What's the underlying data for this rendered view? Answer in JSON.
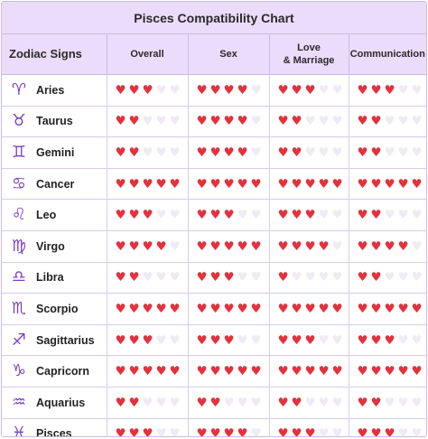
{
  "title": "Pisces Compatibility Chart",
  "headers": {
    "sign": "Zodiac Signs",
    "overall": "Overall",
    "sex": "Sex",
    "love_line1": "Love",
    "love_line2": "& Marriage",
    "communication": "Communication"
  },
  "colors": {
    "accent": "#7b3fbf",
    "heart_on": "#e3323d",
    "heart_off": "#f0eaf5",
    "header_bg": "#ecdcfb"
  },
  "max_hearts": 5,
  "rows": [
    {
      "glyph": "♈",
      "icon": "aries-icon",
      "name": "Aries",
      "ratings": [
        3,
        4,
        3,
        3
      ]
    },
    {
      "glyph": "♉",
      "icon": "taurus-icon",
      "name": "Taurus",
      "ratings": [
        2,
        4,
        2,
        2
      ]
    },
    {
      "glyph": "♊",
      "icon": "gemini-icon",
      "name": "Gemini",
      "ratings": [
        2,
        4,
        2,
        2
      ]
    },
    {
      "glyph": "♋",
      "icon": "cancer-icon",
      "name": "Cancer",
      "ratings": [
        5,
        5,
        5,
        5
      ]
    },
    {
      "glyph": "♌",
      "icon": "leo-icon",
      "name": "Leo",
      "ratings": [
        3,
        3,
        3,
        2
      ]
    },
    {
      "glyph": "♍",
      "icon": "virgo-icon",
      "name": "Virgo",
      "ratings": [
        4,
        5,
        4,
        4
      ]
    },
    {
      "glyph": "♎",
      "icon": "libra-icon",
      "name": "Libra",
      "ratings": [
        2,
        3,
        1,
        2
      ]
    },
    {
      "glyph": "♏",
      "icon": "scorpio-icon",
      "name": "Scorpio",
      "ratings": [
        5,
        5,
        5,
        5
      ]
    },
    {
      "glyph": "♐",
      "icon": "sagittarius-icon",
      "name": "Sagittarius",
      "ratings": [
        3,
        3,
        3,
        3
      ]
    },
    {
      "glyph": "♑",
      "icon": "capricorn-icon",
      "name": "Capricorn",
      "ratings": [
        5,
        5,
        5,
        5
      ]
    },
    {
      "glyph": "♒",
      "icon": "aquarius-icon",
      "name": "Aquarius",
      "ratings": [
        2,
        2,
        2,
        2
      ]
    },
    {
      "glyph": "♓",
      "icon": "pisces-icon",
      "name": "Pisces",
      "ratings": [
        3,
        4,
        3,
        3
      ]
    }
  ]
}
